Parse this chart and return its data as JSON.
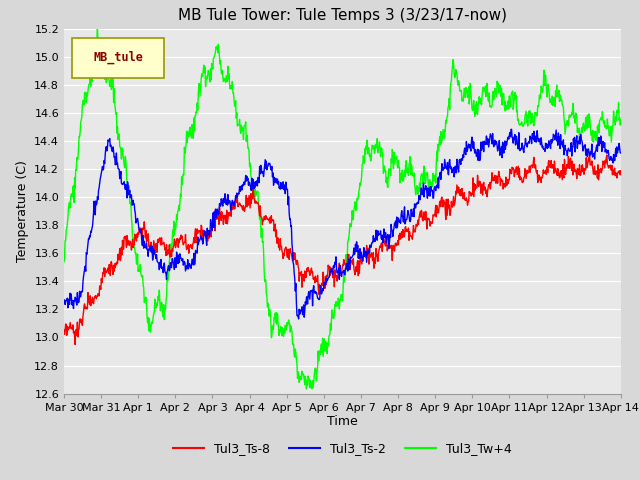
{
  "title": "MB Tule Tower: Tule Temps 3 (3/23/17-now)",
  "xlabel": "Time",
  "ylabel": "Temperature (C)",
  "ylim": [
    12.6,
    15.2
  ],
  "yticks": [
    12.6,
    12.8,
    13.0,
    13.2,
    13.4,
    13.6,
    13.8,
    14.0,
    14.2,
    14.4,
    14.6,
    14.8,
    15.0,
    15.2
  ],
  "xtick_labels": [
    "Mar 30",
    "Mar 31",
    "Apr 1",
    "Apr 2",
    "Apr 3",
    "Apr 4",
    "Apr 5",
    "Apr 6",
    "Apr 7",
    "Apr 8",
    "Apr 9",
    "Apr 10",
    "Apr 11",
    "Apr 12",
    "Apr 13",
    "Apr 14"
  ],
  "line_colors": [
    "red",
    "blue",
    "lime"
  ],
  "line_labels": [
    "Tul3_Ts-8",
    "Tul3_Ts-2",
    "Tul3_Tw+4"
  ],
  "legend_label": "MB_tule",
  "fig_bg": "#d8d8d8",
  "plot_bg": "#e8e8e8",
  "grid_color": "#ffffff",
  "title_fontsize": 11,
  "label_fontsize": 9,
  "tick_fontsize": 8
}
